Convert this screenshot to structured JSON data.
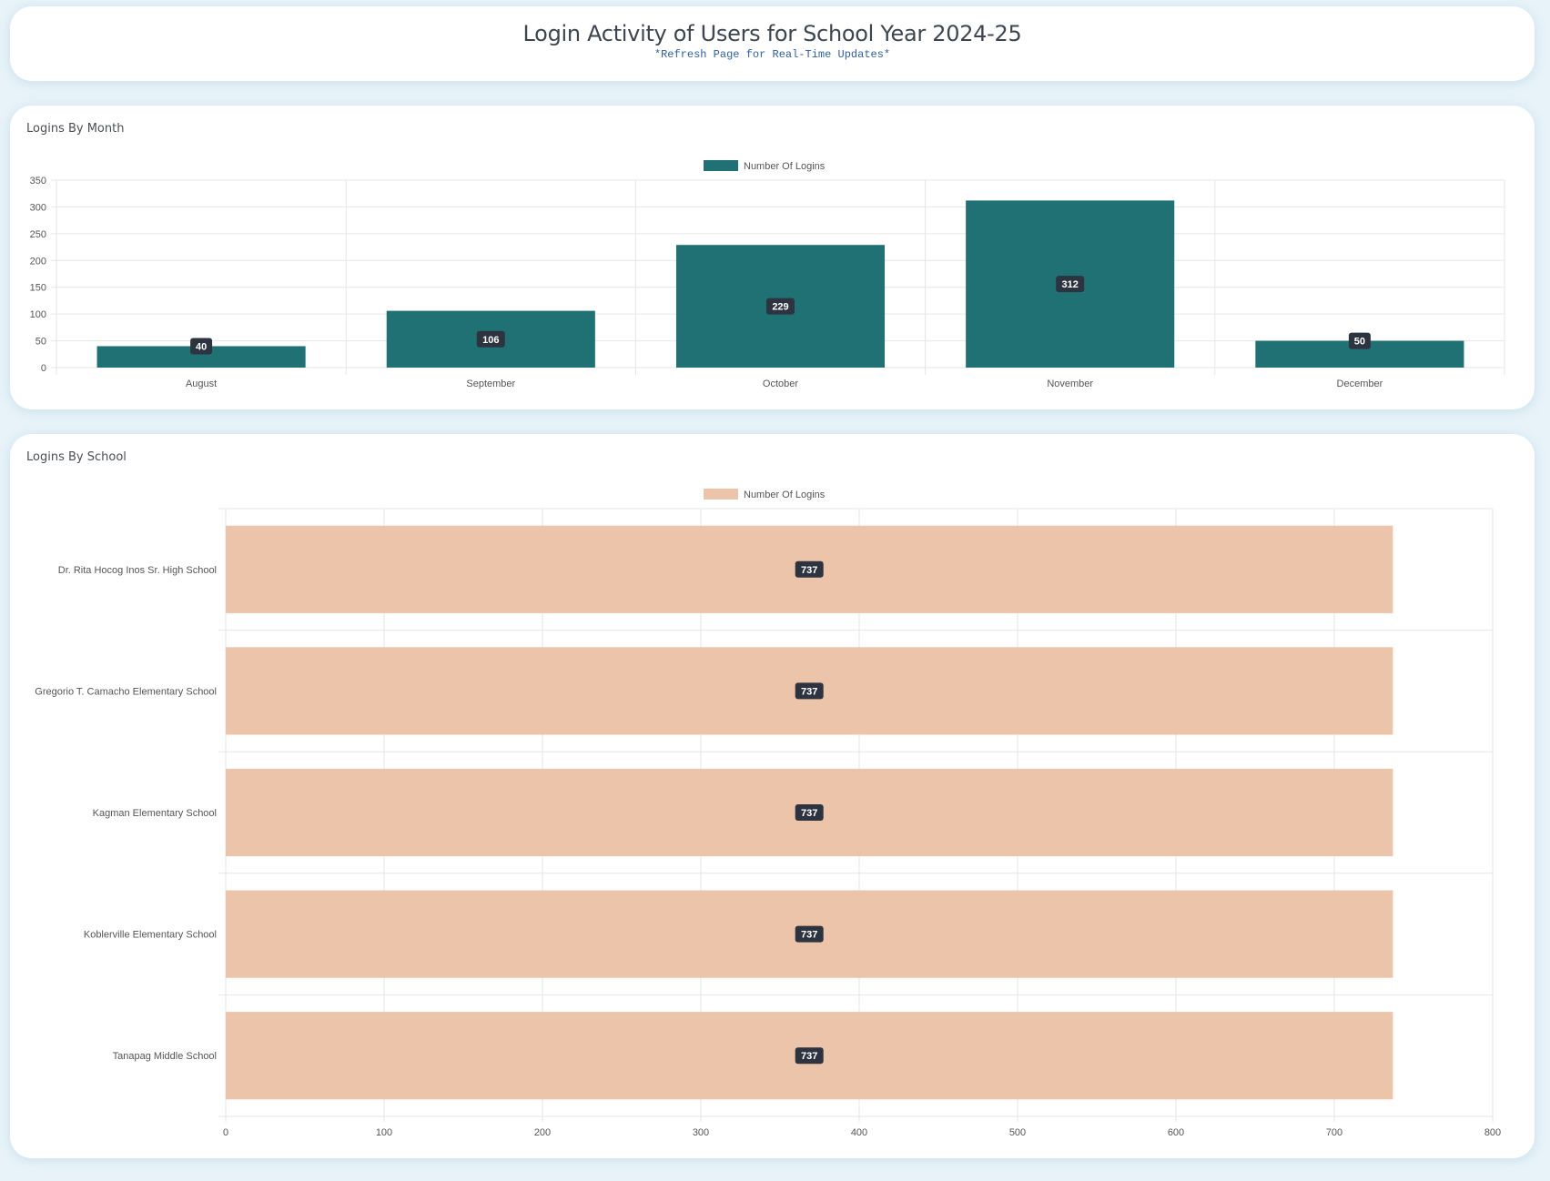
{
  "header": {
    "title": "Login Activity of Users for School Year 2024-25",
    "subtitle": "*Refresh Page for Real-Time Updates*"
  },
  "colors": {
    "background": "#e7f3f9",
    "teal": "#207173",
    "peach": "#ecc4a9",
    "badge": "#2d3440"
  },
  "chart_data": [
    {
      "title": "Logins By Month",
      "type": "bar",
      "orientation": "vertical",
      "categories": [
        "August",
        "September",
        "October",
        "November",
        "December"
      ],
      "series": [
        {
          "name": "Number Of Logins",
          "values": [
            40,
            106,
            229,
            312,
            50
          ],
          "color": "#207173"
        }
      ],
      "ylim": [
        0,
        350
      ],
      "yticks": [
        0,
        50,
        100,
        150,
        200,
        250,
        300,
        350
      ],
      "legend": "top-center",
      "grid": true,
      "data_labels": true
    },
    {
      "title": "Logins By School",
      "type": "bar",
      "orientation": "horizontal",
      "categories": [
        "Dr. Rita Hocog Inos Sr. High School",
        "Gregorio T. Camacho Elementary School",
        "Kagman Elementary School",
        "Koblerville Elementary School",
        "Tanapag Middle School"
      ],
      "series": [
        {
          "name": "Number Of Logins",
          "values": [
            737,
            737,
            737,
            737,
            737
          ],
          "color": "#ecc4a9"
        }
      ],
      "xlim": [
        0,
        800
      ],
      "xticks": [
        0,
        100,
        200,
        300,
        400,
        500,
        600,
        700,
        800
      ],
      "legend": "top-center",
      "grid": true,
      "data_labels": true
    }
  ]
}
